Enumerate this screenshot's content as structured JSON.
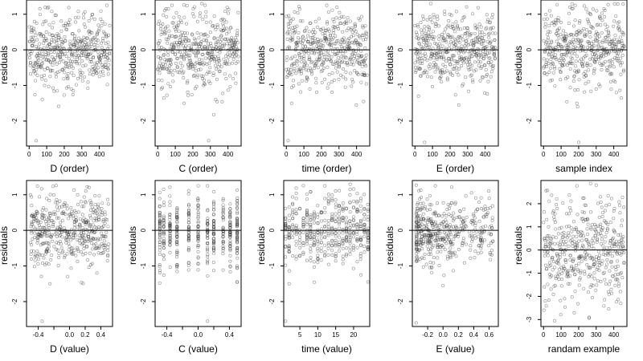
{
  "chart_data": [
    {
      "id": "p1",
      "type": "scatter",
      "xlabel": "D (order)",
      "ylabel": "residuals",
      "xlim": [
        -15,
        475
      ],
      "ylim": [
        -2.7,
        1.4
      ],
      "xticks": [
        0,
        100,
        200,
        300,
        400
      ],
      "yticks": [
        -2,
        -1,
        0,
        1
      ],
      "reference_line_y": 0,
      "x_kind": "order",
      "seed": 11,
      "n": 450,
      "sd": 0.5,
      "points_sample": [
        {
          "x": 40,
          "y": -2.55
        },
        {
          "x": 75,
          "y": -1.4
        },
        {
          "x": 110,
          "y": 1.2
        },
        {
          "x": 160,
          "y": -1.15
        },
        {
          "x": 240,
          "y": -1.1
        },
        {
          "x": 310,
          "y": 0.9
        }
      ]
    },
    {
      "id": "p2",
      "type": "scatter",
      "xlabel": "C (order)",
      "ylabel": "residuals",
      "xlim": [
        -15,
        475
      ],
      "ylim": [
        -2.7,
        1.4
      ],
      "xticks": [
        0,
        100,
        200,
        300,
        400
      ],
      "yticks": [
        -2,
        -1,
        0,
        1
      ],
      "reference_line_y": 0,
      "x_kind": "order",
      "seed": 23,
      "n": 450,
      "sd": 0.5,
      "points_sample": [
        {
          "x": 290,
          "y": -2.55
        },
        {
          "x": 150,
          "y": -1.5
        },
        {
          "x": 270,
          "y": 1.25
        },
        {
          "x": 330,
          "y": -1.4
        },
        {
          "x": 60,
          "y": -0.95
        }
      ]
    },
    {
      "id": "p3",
      "type": "scatter",
      "xlabel": "time (order)",
      "ylabel": "residuals",
      "xlim": [
        -15,
        475
      ],
      "ylim": [
        -2.7,
        1.4
      ],
      "xticks": [
        0,
        100,
        200,
        300,
        400
      ],
      "yticks": [
        -2,
        -1,
        0,
        1
      ],
      "reference_line_y": 0,
      "x_kind": "order",
      "seed": 37,
      "n": 450,
      "sd": 0.5,
      "points_sample": [
        {
          "x": 10,
          "y": -2.55
        },
        {
          "x": 30,
          "y": -1.5
        },
        {
          "x": 230,
          "y": 1.25
        },
        {
          "x": 440,
          "y": -1.45
        }
      ]
    },
    {
      "id": "p4",
      "type": "scatter",
      "xlabel": "E (order)",
      "ylabel": "residuals",
      "xlim": [
        -15,
        475
      ],
      "ylim": [
        -2.7,
        1.4
      ],
      "xticks": [
        0,
        100,
        200,
        300,
        400
      ],
      "yticks": [
        -2,
        -1,
        0,
        1
      ],
      "reference_line_y": 0,
      "x_kind": "order",
      "seed": 51,
      "n": 450,
      "sd": 0.5,
      "points_sample": [
        {
          "x": 55,
          "y": -2.6
        },
        {
          "x": 250,
          "y": -1.55
        },
        {
          "x": 90,
          "y": 1.3
        },
        {
          "x": 20,
          "y": -1.3
        }
      ]
    },
    {
      "id": "p5",
      "type": "scatter",
      "xlabel": "sample index",
      "ylabel": "residuals",
      "xlim": [
        -15,
        475
      ],
      "ylim": [
        -2.7,
        1.4
      ],
      "xticks": [
        0,
        100,
        200,
        300,
        400
      ],
      "yticks": [
        -2,
        -1,
        0,
        1
      ],
      "reference_line_y": 0,
      "x_kind": "order",
      "seed": 67,
      "n": 450,
      "sd": 0.5,
      "points_sample": [
        {
          "x": 200,
          "y": -2.6
        },
        {
          "x": 190,
          "y": -1.5
        },
        {
          "x": 180,
          "y": 1.25
        },
        {
          "x": 300,
          "y": -1.1
        }
      ]
    },
    {
      "id": "p6",
      "type": "scatter",
      "xlabel": "D (value)",
      "ylabel": "residuals",
      "xlim": [
        -0.55,
        0.55
      ],
      "ylim": [
        -2.7,
        1.4
      ],
      "xticks": [
        -0.4,
        -0.2,
        0.0,
        0.2,
        0.4
      ],
      "xticklabels": [
        "-0.4",
        "",
        "0.0",
        "0.2",
        "0.4"
      ],
      "yticks": [
        -2,
        -1,
        0,
        1
      ],
      "reference_line_y": 0,
      "x_kind": "value",
      "seed": 83,
      "n": 450,
      "sd": 0.5,
      "points_sample": [
        {
          "x": -0.35,
          "y": -2.55
        },
        {
          "x": -0.25,
          "y": -1.5
        },
        {
          "x": -0.5,
          "y": 1.0
        },
        {
          "x": 0.35,
          "y": -1.2
        }
      ]
    },
    {
      "id": "p7",
      "type": "scatter",
      "xlabel": "C (value)",
      "ylabel": "residuals",
      "xlim": [
        -0.55,
        0.55
      ],
      "ylim": [
        -2.7,
        1.4
      ],
      "xticks": [
        -0.4,
        -0.2,
        0.0,
        0.2,
        0.4
      ],
      "xticklabels": [
        "-0.4",
        "",
        "0.0",
        "",
        "0.4"
      ],
      "yticks": [
        -2,
        -1,
        0,
        1
      ],
      "reference_line_y": 0,
      "x_kind": "discrete",
      "discrete_x": [
        -0.49,
        -0.44,
        -0.36,
        -0.27,
        -0.12,
        0.0,
        0.12,
        0.2,
        0.32,
        0.41,
        0.5
      ],
      "seed": 97,
      "n": 450,
      "sd": 0.5,
      "points_sample": [
        {
          "x": 0.12,
          "y": -2.55
        },
        {
          "x": 0.12,
          "y": 1.25
        },
        {
          "x": 0.5,
          "y": -1.45
        },
        {
          "x": -0.27,
          "y": -1.0
        }
      ]
    },
    {
      "id": "p8",
      "type": "scatter",
      "xlabel": "time (value)",
      "ylabel": "residuals",
      "xlim": [
        0.5,
        24.5
      ],
      "ylim": [
        -2.7,
        1.4
      ],
      "xticks": [
        5,
        10,
        15,
        20
      ],
      "yticks": [
        -2,
        -1,
        0,
        1
      ],
      "reference_line_y": 0,
      "x_kind": "discrete",
      "discrete_x": [
        1,
        2,
        3,
        4,
        5,
        6,
        7,
        8,
        9,
        10,
        11,
        12,
        13,
        14,
        15,
        16,
        17,
        18,
        19,
        20,
        21,
        22,
        23,
        24
      ],
      "seed": 109,
      "n": 450,
      "sd": 0.5,
      "points_sample": [
        {
          "x": 1,
          "y": -2.55
        },
        {
          "x": 12,
          "y": 1.25
        },
        {
          "x": 24,
          "y": -1.45
        },
        {
          "x": 2,
          "y": -1.5
        }
      ]
    },
    {
      "id": "p9",
      "type": "scatter",
      "xlabel": "E (value)",
      "ylabel": "residuals",
      "xlim": [
        -0.4,
        0.72
      ],
      "ylim": [
        -2.7,
        1.4
      ],
      "xticks": [
        -0.2,
        0.0,
        0.2,
        0.4,
        0.6
      ],
      "xticklabels": [
        "-0.2",
        "0.0",
        "0.2",
        "0.4",
        "0.6"
      ],
      "yticks": [
        -2,
        -1,
        0,
        1
      ],
      "reference_line_y": 0,
      "x_kind": "value_skew",
      "seed": 127,
      "n": 450,
      "sd": 0.5,
      "points_sample": [
        {
          "x": -0.35,
          "y": -2.6
        },
        {
          "x": 0.0,
          "y": -1.55
        },
        {
          "x": -0.1,
          "y": 1.25
        },
        {
          "x": 0.65,
          "y": -0.3
        }
      ]
    },
    {
      "id": "p10",
      "type": "scatter",
      "xlabel": "randam example",
      "ylabel": "residuals",
      "xlim": [
        -15,
        475
      ],
      "ylim": [
        -3.3,
        3.0
      ],
      "xticks": [
        0,
        100,
        200,
        300,
        400
      ],
      "yticks": [
        -3,
        -2,
        -1,
        0,
        1,
        2
      ],
      "reference_line_y": 0,
      "x_kind": "order",
      "seed": 139,
      "n": 450,
      "sd": 1.0,
      "points_sample": [
        {
          "x": 300,
          "y": 2.8
        },
        {
          "x": 260,
          "y": -2.9
        },
        {
          "x": 440,
          "y": -2.3
        },
        {
          "x": 10,
          "y": -2.2
        }
      ]
    }
  ]
}
